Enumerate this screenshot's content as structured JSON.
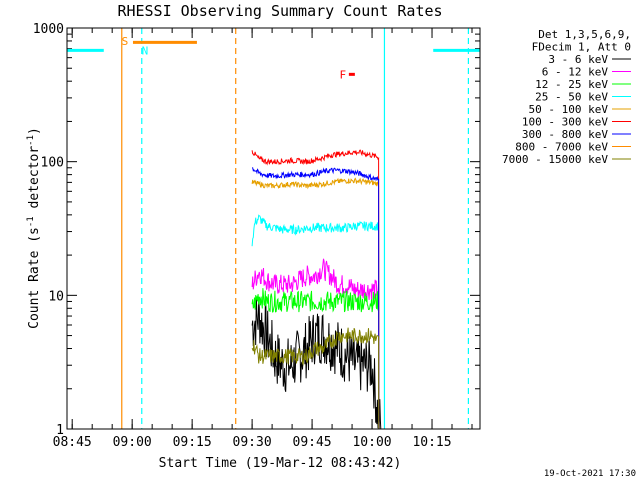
{
  "chart_data": {
    "type": "line",
    "title": "RHESSI Observing Summary Count Rates",
    "xlabel": "Start Time (19-Mar-12 08:43:42)",
    "ylabel_main": "Count Rate (s",
    "ylabel_sup1": "-1",
    "ylabel_mid": " detector",
    "ylabel_sup2": "-1",
    "ylabel_end": ")",
    "y_scale": "log",
    "ylim": [
      1,
      1000
    ],
    "x_units": "minutes after 08:43:42",
    "xlim": [
      0,
      103.3
    ],
    "y_ticks": [
      {
        "label": "1",
        "value": 1
      },
      {
        "label": "10",
        "value": 10
      },
      {
        "label": "100",
        "value": 100
      },
      {
        "label": "1000",
        "value": 1000
      }
    ],
    "x_ticks": [
      {
        "label": "08:45",
        "value": 1.3
      },
      {
        "label": "09:00",
        "value": 16.3
      },
      {
        "label": "09:15",
        "value": 31.3
      },
      {
        "label": "09:30",
        "value": 46.3
      },
      {
        "label": "09:45",
        "value": 61.3
      },
      {
        "label": "10:00",
        "value": 76.3
      },
      {
        "label": "10:15",
        "value": 91.3
      }
    ],
    "legend_header": [
      "Det 1,3,5,6,9,",
      "FDecim 1, Att 0"
    ],
    "legend_position": "right",
    "series": [
      {
        "name": "3 - 6 keV",
        "color": "#000000",
        "t": [
          46.3,
          48,
          50,
          52,
          54,
          56,
          58,
          60,
          62,
          64,
          66,
          68,
          70,
          72,
          74,
          76.3,
          77.5,
          78.5
        ],
        "values": [
          6,
          7,
          5,
          3.5,
          3,
          3,
          3.5,
          4,
          5,
          5,
          4.5,
          4,
          3.5,
          3,
          3,
          3,
          1.5,
          1
        ]
      },
      {
        "name": "6 - 12 keV",
        "color": "#ff00ff",
        "t": [
          46.3,
          48,
          50,
          52,
          54,
          56,
          58,
          60,
          62,
          64,
          66,
          68,
          70,
          72,
          74,
          76,
          78
        ],
        "values": [
          12,
          15,
          13,
          12,
          12,
          12,
          13,
          14,
          14,
          16,
          14,
          12,
          12,
          11,
          11,
          11,
          11
        ]
      },
      {
        "name": "12 - 25 keV",
        "color": "#00ff00",
        "t": [
          46.3,
          48,
          50,
          52,
          54,
          56,
          58,
          60,
          62,
          64,
          66,
          68,
          70,
          72,
          74,
          76,
          78
        ],
        "values": [
          8,
          10,
          9,
          9,
          9,
          9,
          9,
          9,
          9,
          9,
          9,
          9,
          9,
          9,
          9,
          9,
          9
        ]
      },
      {
        "name": "25 - 50 keV",
        "color": "#00ffff",
        "t": [
          46.3,
          47,
          48,
          50,
          52,
          54,
          56,
          58,
          60,
          62,
          64,
          66,
          68,
          70,
          72,
          74,
          76,
          78
        ],
        "values": [
          25,
          35,
          38,
          33,
          32,
          31,
          31,
          31,
          32,
          32,
          32,
          32,
          32,
          32,
          33,
          33,
          33,
          33
        ]
      },
      {
        "name": "50 - 100 keV",
        "color": "#e6a000",
        "t": [
          46.3,
          48,
          50,
          52,
          54,
          56,
          58,
          60,
          62,
          64,
          66,
          68,
          70,
          72,
          74,
          76,
          78
        ],
        "values": [
          70,
          68,
          66,
          66,
          67,
          68,
          67,
          66,
          67,
          68,
          70,
          71,
          72,
          72,
          71,
          70,
          68
        ]
      },
      {
        "name": "100 - 300 keV",
        "color": "#ff0000",
        "t": [
          46.3,
          48,
          50,
          52,
          54,
          56,
          58,
          60,
          62,
          64,
          66,
          68,
          70,
          72,
          74,
          76,
          78
        ],
        "values": [
          120,
          105,
          100,
          100,
          101,
          102,
          101,
          100,
          103,
          107,
          112,
          114,
          116,
          118,
          116,
          112,
          108
        ]
      },
      {
        "name": "300 - 800 keV",
        "color": "#0000ff",
        "t": [
          46.3,
          48,
          50,
          52,
          54,
          56,
          58,
          60,
          62,
          64,
          66,
          68,
          70,
          72,
          74,
          76,
          78
        ],
        "values": [
          90,
          82,
          79,
          78,
          79,
          80,
          80,
          80,
          81,
          84,
          86,
          86,
          85,
          83,
          80,
          76,
          73
        ]
      },
      {
        "name": "800 - 7000 keV",
        "color": "#ff8c00",
        "t": [],
        "values": []
      },
      {
        "name": "7000 - 15000 keV",
        "color": "#808000",
        "t": [
          46.3,
          48,
          50,
          52,
          54,
          56,
          58,
          60,
          62,
          64,
          66,
          68,
          70,
          72,
          74,
          76,
          78
        ],
        "values": [
          4.5,
          3.5,
          3.5,
          3.5,
          3.5,
          3.5,
          3.5,
          3.5,
          4,
          4,
          4.5,
          5,
          5,
          5,
          5,
          5,
          4.5
        ]
      }
    ],
    "attenuator_bars": [
      {
        "label": "",
        "color": "#00ffff",
        "t": [
          0,
          9.2
        ],
        "value": 680
      },
      {
        "label": "",
        "color": "#00ffff",
        "t": [
          91.6,
          103.3
        ],
        "value": 680
      }
    ],
    "annotations": [
      {
        "label": "S",
        "color": "#ff8c00",
        "t": 14.5,
        "value": 800
      },
      {
        "label": "N",
        "color": "#00ffff",
        "t": 19.5,
        "value": 680
      },
      {
        "label": "F",
        "color": "#ff0000",
        "t": 69,
        "value": 450
      }
    ],
    "saa_bar": {
      "color": "#ff8c00",
      "t": [
        16.5,
        32.5
      ],
      "value": 780
    },
    "flare_marker": {
      "color": "#ff0000",
      "t": [
        70.5,
        72.0
      ],
      "value": 450
    },
    "vertical_lines": [
      {
        "color": "#ff8c00",
        "style": "solid",
        "t": 13.7
      },
      {
        "color": "#00ffff",
        "style": "dashed",
        "t": 18.7
      },
      {
        "color": "#ff8c00",
        "style": "dashed",
        "t": 42.2
      },
      {
        "color": "#00ffff",
        "style": "solid",
        "t": 79.4
      },
      {
        "color": "#00ffff",
        "style": "dashed",
        "t": 100.4
      }
    ]
  },
  "footer": {
    "timestamp": "19-Oct-2021 17:30"
  }
}
